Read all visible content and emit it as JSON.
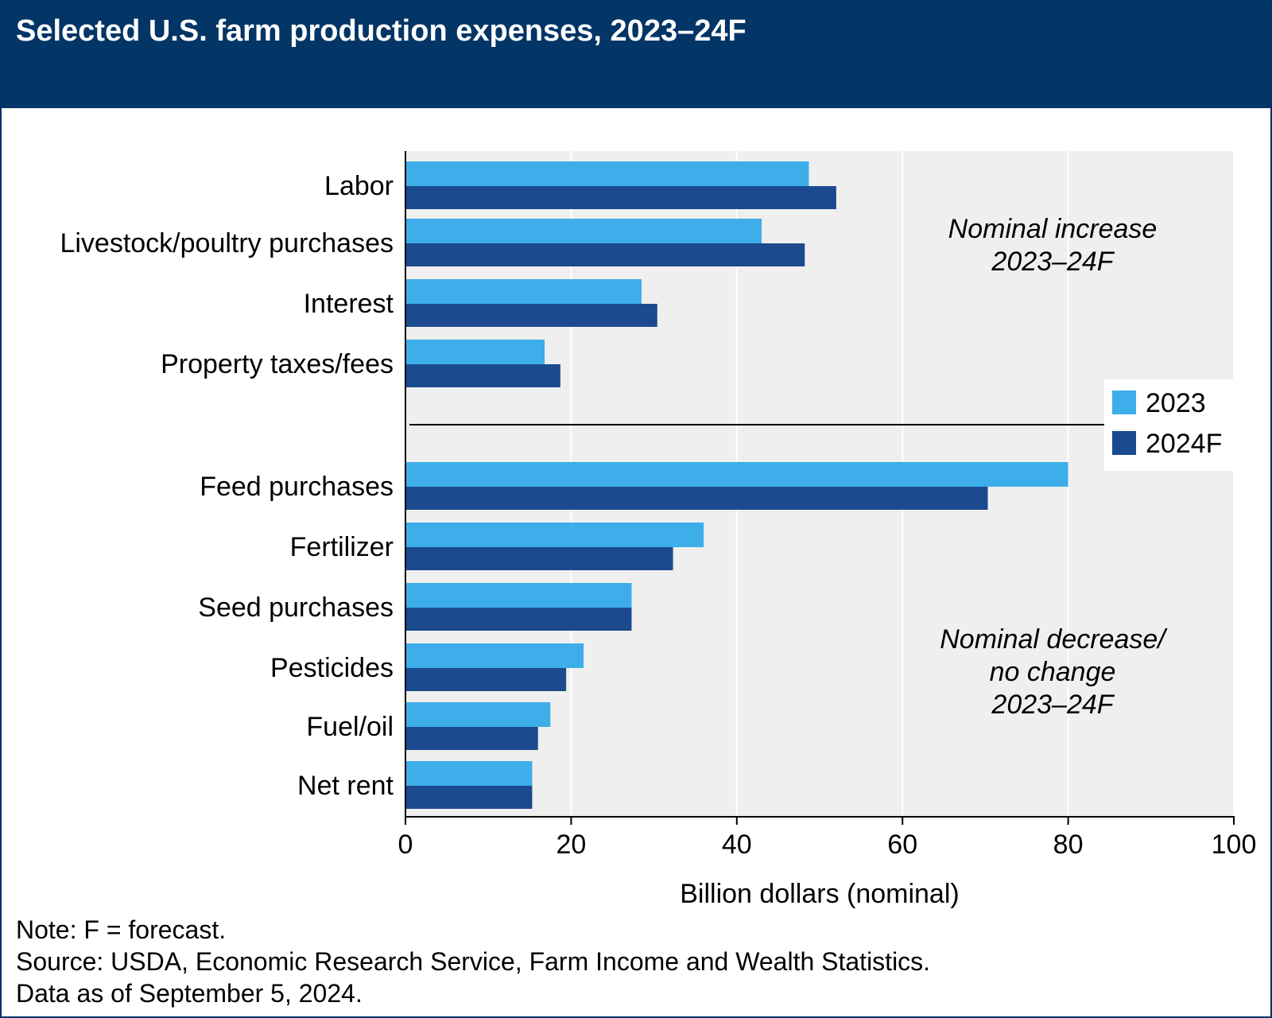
{
  "header": {
    "title": "Selected U.S. farm production expenses, 2023–24F"
  },
  "chart_data": {
    "type": "bar",
    "orientation": "horizontal",
    "categories": [
      "Labor",
      "Livestock/poultry purchases",
      "Interest",
      "Property taxes/fees",
      "Feed purchases",
      "Fertilizer",
      "Seed purchases",
      "Pesticides",
      "Fuel/oil",
      "Net rent"
    ],
    "series": [
      {
        "name": "2023",
        "color": "#3daee9",
        "values": [
          48.7,
          43.0,
          28.5,
          16.8,
          80.0,
          36.0,
          27.3,
          21.5,
          17.5,
          15.3
        ]
      },
      {
        "name": "2024F",
        "color": "#1b4a8e",
        "values": [
          52.0,
          48.2,
          30.4,
          18.7,
          70.3,
          32.3,
          27.3,
          19.4,
          16.0,
          15.3
        ]
      }
    ],
    "xlabel": "Billion dollars (nominal)",
    "xlim": [
      0,
      100
    ],
    "xticks": [
      0,
      20,
      40,
      60,
      80,
      100
    ],
    "grid": "vertical",
    "legend_position": "right-middle",
    "groups": [
      {
        "annotation": [
          "Nominal increase",
          "2023–24F"
        ],
        "categories": [
          "Labor",
          "Livestock/poultry purchases",
          "Interest",
          "Property taxes/fees"
        ]
      },
      {
        "annotation": [
          "Nominal decrease/",
          "no change",
          "2023–24F"
        ],
        "categories": [
          "Feed purchases",
          "Fertilizer",
          "Seed purchases",
          "Pesticides",
          "Fuel/oil",
          "Net rent"
        ]
      }
    ],
    "plot_background": "#efefef"
  },
  "notes": {
    "note": "Note: F = forecast.",
    "source": "Source: USDA, Economic Research Service, Farm Income and Wealth Statistics.",
    "data_as_of": "Data as of September 5, 2024."
  }
}
